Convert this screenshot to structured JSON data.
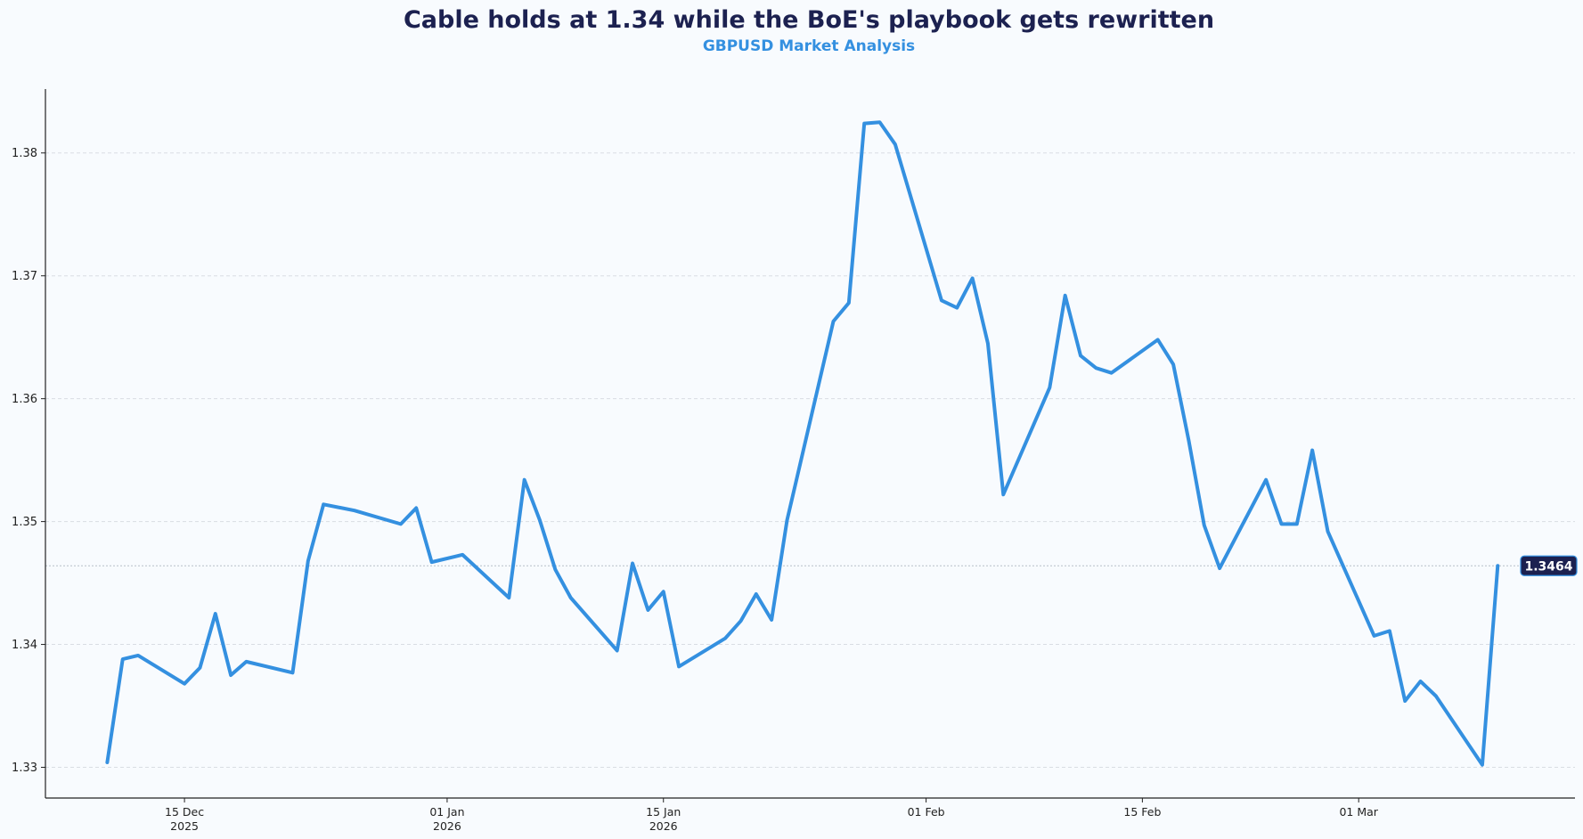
{
  "chart_data": {
    "type": "line",
    "title": "Cable holds at 1.34 while the BoE's playbook gets rewritten",
    "subtitle": "GBPUSD Market Analysis",
    "xlabel": "",
    "ylabel": "",
    "xlim": [
      "2025-12-06",
      "2026-03-15"
    ],
    "ylim": [
      1.3275,
      1.3852
    ],
    "grid": "horizontal-dashed",
    "legend": "none",
    "colors": {
      "line": "#3490e0",
      "title": "#1c2150",
      "subtitle": "#3490e0",
      "badge_bg": "#1c2150",
      "badge_border": "#3490e0",
      "grid": "#d9dde3",
      "background": "#f8fbfe"
    },
    "y_ticks": [
      1.33,
      1.34,
      1.35,
      1.36,
      1.37,
      1.38
    ],
    "y_tick_labels": [
      "1.33",
      "1.34",
      "1.35",
      "1.36",
      "1.37",
      "1.38"
    ],
    "x_ticks": [
      {
        "date": "2025-12-15",
        "label": "15 Dec",
        "sublabel": "2025"
      },
      {
        "date": "2026-01-01",
        "label": "01 Jan",
        "sublabel": "2026"
      },
      {
        "date": "2026-01-15",
        "label": "15 Jan",
        "sublabel": "2026"
      },
      {
        "date": "2026-02-01",
        "label": "01 Feb",
        "sublabel": ""
      },
      {
        "date": "2026-02-15",
        "label": "15 Feb",
        "sublabel": ""
      },
      {
        "date": "2026-03-01",
        "label": "01 Mar",
        "sublabel": ""
      }
    ],
    "last_value_label": "1.3464",
    "series": [
      {
        "x": [
          "2025-12-10",
          "2025-12-11",
          "2025-12-12",
          "2025-12-15",
          "2025-12-16",
          "2025-12-17",
          "2025-12-18",
          "2025-12-19",
          "2025-12-22",
          "2025-12-23",
          "2025-12-24",
          "2025-12-26",
          "2025-12-29",
          "2025-12-30",
          "2025-12-31",
          "2026-01-02",
          "2026-01-05",
          "2026-01-06",
          "2026-01-07",
          "2026-01-08",
          "2026-01-09",
          "2026-01-12",
          "2026-01-13",
          "2026-01-14",
          "2026-01-15",
          "2026-01-16",
          "2026-01-19",
          "2026-01-20",
          "2026-01-21",
          "2026-01-22",
          "2026-01-23",
          "2026-01-26",
          "2026-01-27",
          "2026-01-28",
          "2026-01-29",
          "2026-01-30",
          "2026-02-02",
          "2026-02-03",
          "2026-02-04",
          "2026-02-05",
          "2026-02-06",
          "2026-02-09",
          "2026-02-10",
          "2026-02-11",
          "2026-02-12",
          "2026-02-13",
          "2026-02-16",
          "2026-02-17",
          "2026-02-18",
          "2026-02-19",
          "2026-02-20",
          "2026-02-23",
          "2026-02-24",
          "2026-02-25",
          "2026-02-26",
          "2026-02-27",
          "2026-03-02",
          "2026-03-03",
          "2026-03-04",
          "2026-03-05",
          "2026-03-06",
          "2026-03-09",
          "2026-03-10"
        ],
        "values": [
          1.3304,
          1.3388,
          1.3391,
          1.3368,
          1.3381,
          1.3425,
          1.3375,
          1.3386,
          1.3377,
          1.3468,
          1.3514,
          1.3509,
          1.3498,
          1.3511,
          1.3467,
          1.3473,
          1.3438,
          1.3534,
          1.3501,
          1.3461,
          1.3438,
          1.3395,
          1.3466,
          1.3428,
          1.3443,
          1.3382,
          1.3405,
          1.3419,
          1.3441,
          1.342,
          1.3501,
          1.3663,
          1.3678,
          1.3824,
          1.3825,
          1.3807,
          1.368,
          1.3674,
          1.3698,
          1.3645,
          1.3522,
          1.3609,
          1.3684,
          1.3635,
          1.3625,
          1.3621,
          1.3648,
          1.3628,
          1.3566,
          1.3497,
          1.3462,
          1.3534,
          1.3498,
          1.3498,
          1.3558,
          1.3492,
          1.3407,
          1.3411,
          1.3354,
          1.337,
          1.3358,
          1.3302,
          1.3464
        ]
      }
    ]
  }
}
